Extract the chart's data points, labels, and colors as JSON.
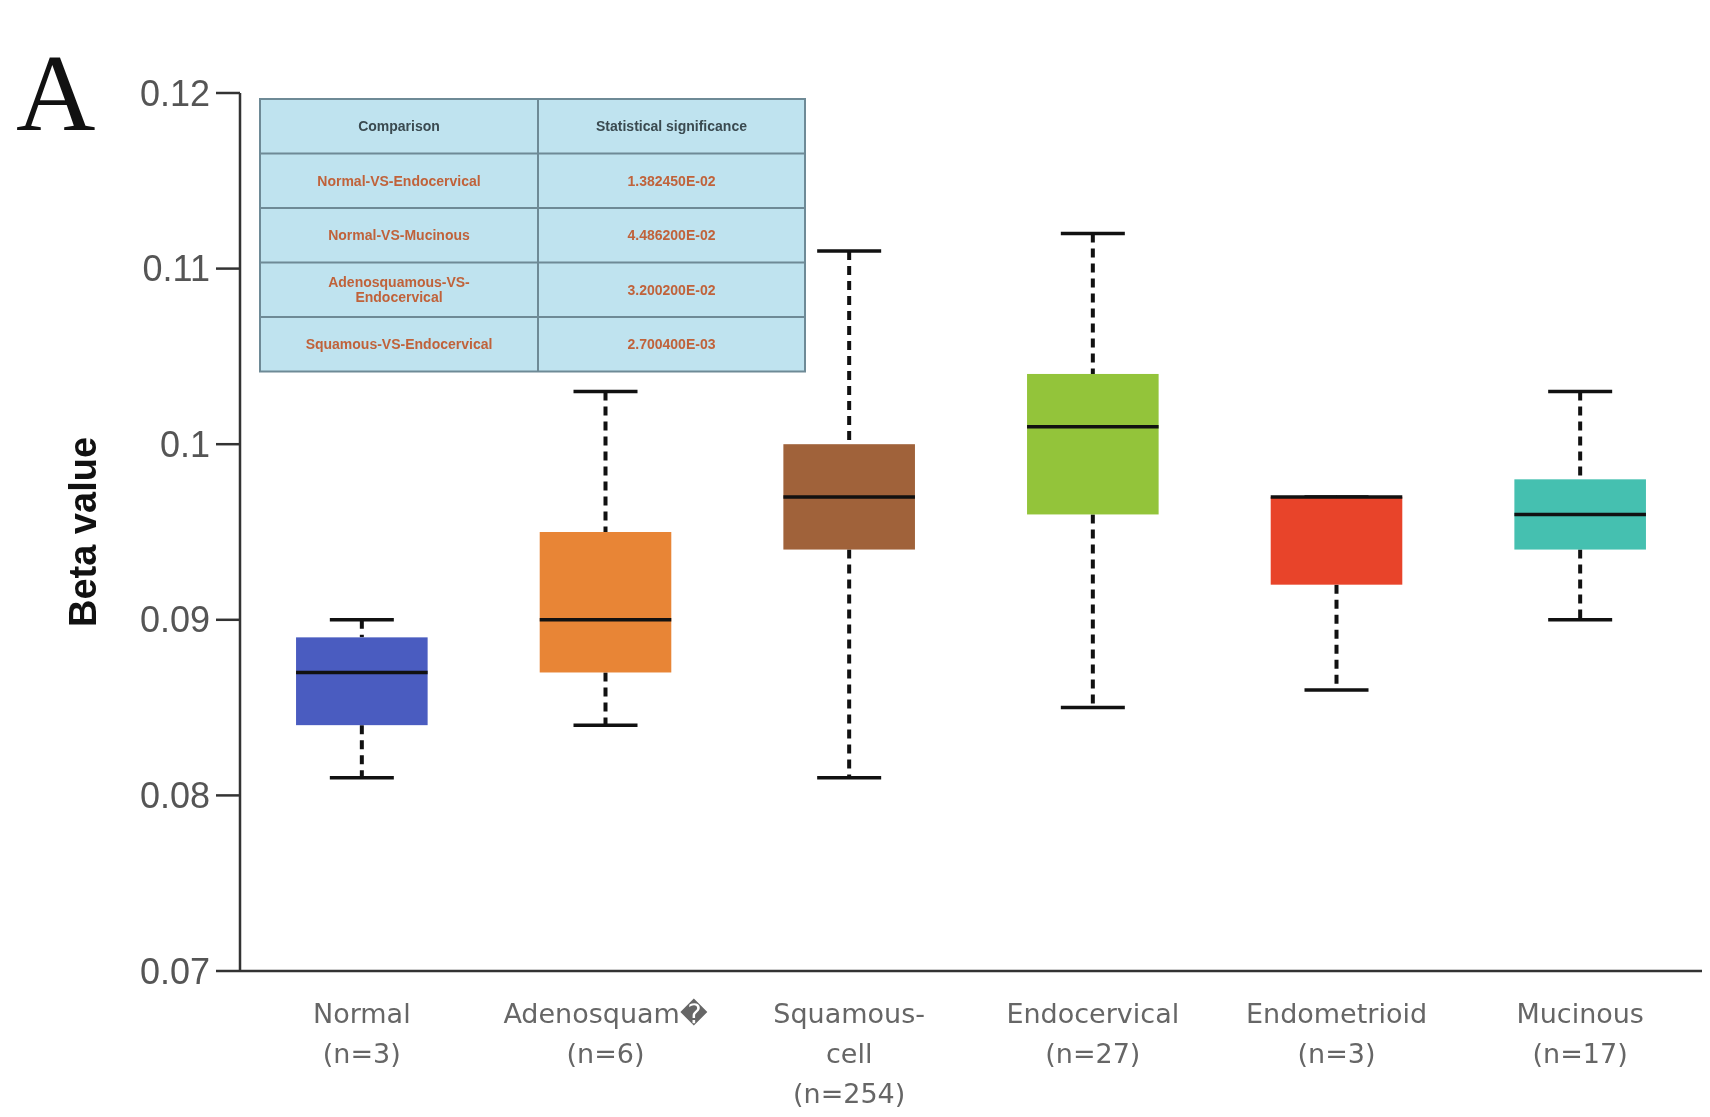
{
  "chart_data": {
    "type": "box",
    "ylabel": "Beta value",
    "categories": [
      "Normal\n(n=3)",
      "Adenosquam�\n(n=6)",
      "Squamous-\ncell\n(n=254)",
      "Endocervical\n(n=27)",
      "Endometrioid\n(n=3)",
      "Mucinous\n(n=17)"
    ],
    "colors": [
      "#4a5cc0",
      "#e88536",
      "#a0623a",
      "#93c43a",
      "#e8442a",
      "#45c0b0"
    ],
    "boxes": [
      {
        "low": 0.081,
        "q1": 0.084,
        "median": 0.087,
        "q3": 0.089,
        "high": 0.09
      },
      {
        "low": 0.084,
        "q1": 0.087,
        "median": 0.09,
        "q3": 0.095,
        "high": 0.103
      },
      {
        "low": 0.081,
        "q1": 0.094,
        "median": 0.097,
        "q3": 0.1,
        "high": 0.111
      },
      {
        "low": 0.085,
        "q1": 0.096,
        "median": 0.101,
        "q3": 0.104,
        "high": 0.112
      },
      {
        "low": 0.086,
        "q1": 0.092,
        "median": 0.097,
        "q3": 0.097,
        "high": 0.097
      },
      {
        "low": 0.09,
        "q1": 0.094,
        "median": 0.096,
        "q3": 0.098,
        "high": 0.103
      }
    ],
    "ylim": [
      0.07,
      0.12
    ],
    "yticks": [
      {
        "value": 0.07,
        "label": "0.07"
      },
      {
        "value": 0.08,
        "label": "0.08"
      },
      {
        "value": 0.09,
        "label": "0.09"
      },
      {
        "value": 0.1,
        "label": "0.1"
      },
      {
        "value": 0.11,
        "label": "0.11"
      },
      {
        "value": 0.12,
        "label": "0.12"
      }
    ],
    "annotations": [
      "A",
      "Comparison",
      "Statistical significance",
      "Normal-VS-Endocervical",
      "1.382450E-02",
      "Normal-VS-Mucinous",
      "4.486200E-02",
      "Adenosquamous-VS-\nEndocervical",
      "3.200200E-02",
      "Squamous-VS-Endocervical",
      "2.700400E-03"
    ]
  }
}
